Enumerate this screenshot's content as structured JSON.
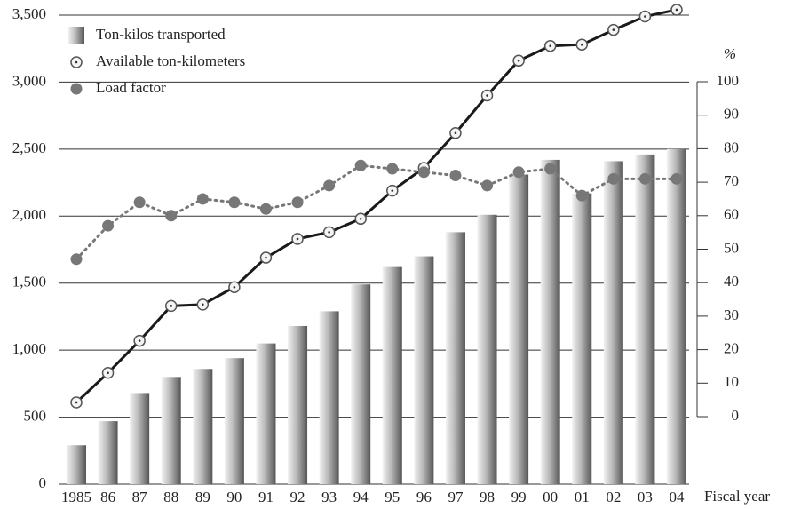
{
  "chart_data": {
    "type": "bar_line",
    "x_label": "Fiscal year",
    "y2_label": "%",
    "categories": [
      "1985",
      "86",
      "87",
      "88",
      "89",
      "90",
      "91",
      "92",
      "93",
      "94",
      "95",
      "96",
      "97",
      "98",
      "99",
      "00",
      "01",
      "02",
      "03",
      "04"
    ],
    "series": [
      {
        "name": "Ton-kilos transported",
        "type": "bar",
        "color": "#b8b8b8",
        "values": [
          290,
          470,
          680,
          800,
          860,
          940,
          1050,
          1180,
          1290,
          1490,
          1620,
          1700,
          1880,
          2010,
          2310,
          2420,
          2170,
          2410,
          2460,
          2500
        ]
      },
      {
        "name": "Available ton-kilometers",
        "type": "line",
        "color": "#1a1a1a",
        "values": [
          610,
          830,
          1070,
          1330,
          1340,
          1470,
          1690,
          1830,
          1880,
          1980,
          2190,
          2360,
          2620,
          2900,
          3160,
          3270,
          3280,
          3390,
          3490,
          3540
        ]
      },
      {
        "name": "Load factor",
        "type": "dotted",
        "axis": "y2",
        "color": "#777777",
        "values": [
          47,
          57,
          64,
          60,
          65,
          64,
          62,
          64,
          69,
          75,
          74,
          73,
          72,
          69,
          73,
          74,
          66,
          71,
          71,
          71
        ]
      }
    ],
    "ylim": [
      0,
      3500
    ],
    "yticks": [
      0,
      500,
      {
        "value": 1000,
        "label": "1,000"
      },
      {
        "value": 1500,
        "label": "1,500"
      },
      {
        "value": 2000,
        "label": "2,000"
      },
      {
        "value": 2500,
        "label": "2,500"
      },
      {
        "value": 3000,
        "label": "3,000"
      },
      {
        "value": 3500,
        "label": "3,500"
      }
    ],
    "y2lim": [
      0,
      100
    ],
    "y2ticks": [
      0,
      10,
      20,
      30,
      40,
      50,
      60,
      70,
      80,
      90,
      100
    ],
    "grid": true
  }
}
